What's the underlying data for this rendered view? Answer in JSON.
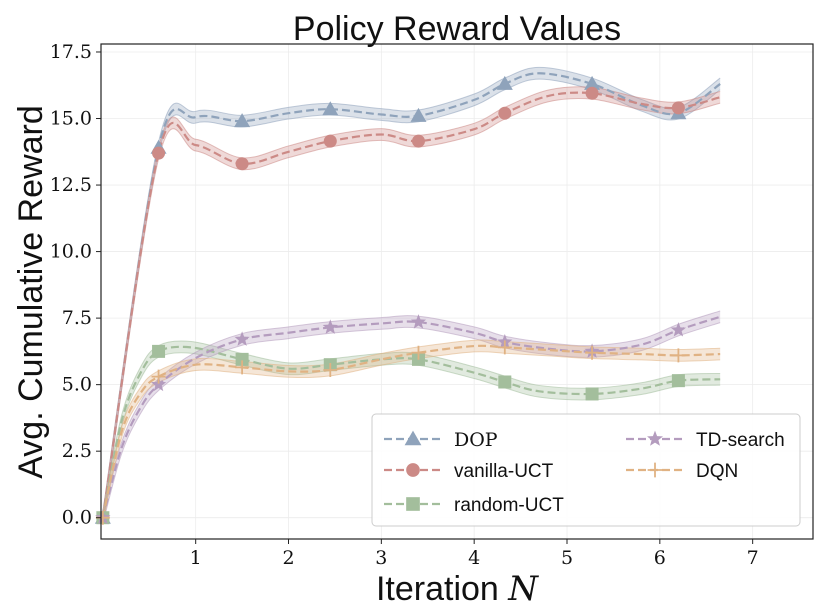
{
  "chart_data": {
    "type": "line",
    "title": "Policy Reward Values",
    "xlabel_text": "Iteration ",
    "xlabel_var": "N",
    "ylabel": "Avg. Cumulative Reward",
    "xlim": [
      -0.02,
      7.65
    ],
    "ylim": [
      -0.8,
      17.8
    ],
    "xticks": [
      1,
      2,
      3,
      4,
      5,
      6,
      7
    ],
    "xtick_labels": [
      "1",
      "2",
      "3",
      "4",
      "5",
      "6",
      "7"
    ],
    "yticks": [
      0,
      2.5,
      5,
      7.5,
      10,
      12.5,
      15,
      17.5
    ],
    "ytick_labels": [
      "0.0",
      "2.5",
      "5.0",
      "7.5",
      "10.0",
      "12.5",
      "15.0",
      "17.5"
    ],
    "legend_position": "lower-right",
    "series": [
      {
        "name": "DOP",
        "color": "#8fa3bb",
        "marker": "triangle",
        "x": [
          0,
          0.6,
          1.0,
          1.5,
          2.0,
          2.45,
          3.0,
          3.4,
          4.0,
          4.33,
          4.7,
          5.27,
          5.8,
          6.2,
          6.65
        ],
        "y": [
          0,
          13.9,
          15.05,
          14.9,
          15.2,
          15.35,
          15.15,
          15.1,
          15.7,
          16.3,
          16.7,
          16.3,
          15.5,
          15.2,
          16.3
        ],
        "marker_x": [
          0,
          0.6,
          1.5,
          2.45,
          3.4,
          4.33,
          5.27,
          6.2
        ],
        "marker_y": [
          0,
          13.9,
          14.9,
          15.35,
          15.1,
          16.3,
          16.3,
          15.2
        ]
      },
      {
        "name": "vanilla-UCT",
        "color": "#cc8a86",
        "marker": "circle",
        "x": [
          0,
          0.6,
          1.0,
          1.5,
          2.0,
          2.45,
          3.0,
          3.4,
          4.0,
          4.33,
          4.8,
          5.27,
          5.8,
          6.2,
          6.65
        ],
        "y": [
          0,
          13.7,
          14.0,
          13.3,
          13.75,
          14.15,
          14.4,
          14.15,
          14.6,
          15.2,
          15.85,
          15.95,
          15.55,
          15.4,
          15.8
        ],
        "marker_x": [
          0,
          0.6,
          1.5,
          2.45,
          3.4,
          4.33,
          5.27,
          6.2
        ],
        "marker_y": [
          0,
          13.7,
          13.3,
          14.15,
          14.15,
          15.2,
          15.95,
          15.4
        ]
      },
      {
        "name": "random-UCT",
        "color": "#a3be9c",
        "marker": "square",
        "x": [
          0,
          0.2,
          0.4,
          0.6,
          0.95,
          1.5,
          2.0,
          2.45,
          3.0,
          3.4,
          4.0,
          4.33,
          4.7,
          5.27,
          5.8,
          6.2,
          6.65
        ],
        "y": [
          0,
          3.6,
          5.4,
          6.25,
          6.4,
          5.95,
          5.6,
          5.75,
          5.95,
          5.95,
          5.45,
          5.1,
          4.75,
          4.65,
          4.85,
          5.15,
          5.2
        ],
        "marker_x": [
          0,
          0.6,
          1.5,
          2.45,
          3.4,
          4.33,
          5.27,
          6.2
        ],
        "marker_y": [
          0,
          6.25,
          5.95,
          5.75,
          5.95,
          5.1,
          4.65,
          5.15
        ]
      },
      {
        "name": "TD-search",
        "color": "#b49cbe",
        "marker": "star",
        "x": [
          0,
          0.2,
          0.4,
          0.6,
          1.0,
          1.5,
          2.0,
          2.45,
          3.0,
          3.4,
          4.0,
          4.33,
          4.8,
          5.27,
          5.8,
          6.2,
          6.65
        ],
        "y": [
          0,
          2.6,
          4.1,
          5.0,
          6.0,
          6.7,
          6.95,
          7.15,
          7.3,
          7.35,
          6.95,
          6.6,
          6.35,
          6.25,
          6.5,
          7.05,
          7.55
        ],
        "marker_x": [
          0,
          0.6,
          1.5,
          2.45,
          3.4,
          4.33,
          5.27,
          6.2
        ],
        "marker_y": [
          0,
          5.0,
          6.7,
          7.15,
          7.35,
          6.6,
          6.25,
          7.05
        ]
      },
      {
        "name": "DQN",
        "color": "#e0b283",
        "marker": "plus",
        "x": [
          0,
          0.2,
          0.4,
          0.6,
          1.0,
          1.5,
          2.0,
          2.45,
          3.0,
          3.4,
          4.0,
          4.33,
          4.8,
          5.27,
          5.8,
          6.2,
          6.65
        ],
        "y": [
          0,
          3.2,
          4.65,
          5.3,
          5.75,
          5.65,
          5.5,
          5.55,
          5.95,
          6.2,
          6.45,
          6.4,
          6.3,
          6.2,
          6.15,
          6.1,
          6.15
        ],
        "marker_x": [
          0,
          0.6,
          1.5,
          2.45,
          3.4,
          4.33,
          5.27,
          6.2
        ],
        "marker_y": [
          0,
          5.3,
          5.65,
          5.55,
          6.2,
          6.4,
          6.2,
          6.1
        ]
      }
    ]
  }
}
